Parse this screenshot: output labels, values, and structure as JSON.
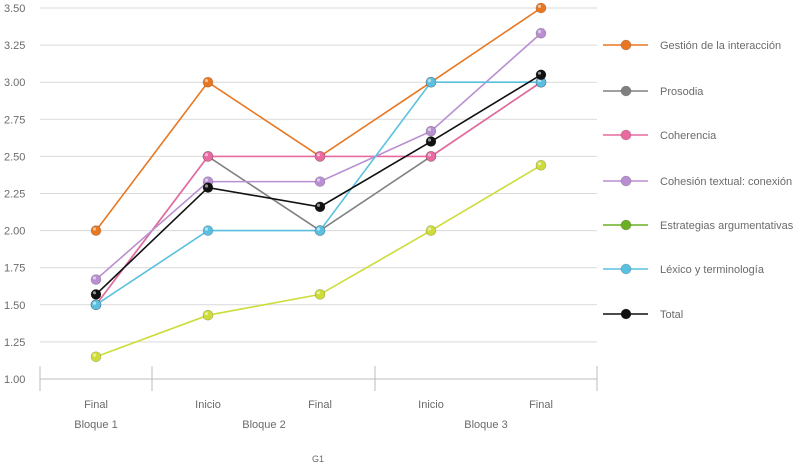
{
  "chart_data": {
    "type": "line",
    "ylim": [
      1.0,
      3.5
    ],
    "yticks": [
      "1.00",
      "1.25",
      "1.50",
      "1.75",
      "2.00",
      "2.25",
      "2.50",
      "2.75",
      "3.00",
      "3.25",
      "3.50"
    ],
    "ytick_values": [
      1.0,
      1.25,
      1.5,
      1.75,
      2.0,
      2.25,
      2.5,
      2.75,
      3.0,
      3.25,
      3.5
    ],
    "grid": true,
    "legend_position": "right",
    "categories": [
      "Final",
      "Inicio",
      "Final",
      "Inicio",
      "Final"
    ],
    "groups": [
      {
        "label": "Bloque 1",
        "start": 0,
        "end": 0
      },
      {
        "label": "Bloque 2",
        "start": 1,
        "end": 2
      },
      {
        "label": "Bloque 3",
        "start": 3,
        "end": 4
      }
    ],
    "footer_label": "G1",
    "series": [
      {
        "name": "Gestión de la interacción",
        "color": "#e87722",
        "values": [
          2.0,
          3.0,
          2.5,
          3.0,
          3.5
        ]
      },
      {
        "name": "Prosodia",
        "color": "#808080",
        "values": [
          1.5,
          2.5,
          2.0,
          2.5,
          3.0
        ]
      },
      {
        "name": "Coherencia",
        "color": "#e86aa0",
        "values": [
          1.5,
          2.5,
          2.5,
          2.5,
          3.0
        ]
      },
      {
        "name": "Cohesión textual: conexión",
        "color": "#b88fd0",
        "values": [
          1.67,
          2.33,
          2.33,
          2.67,
          3.33
        ]
      },
      {
        "name": "Estrategias argumentativas",
        "color": "#cddc39",
        "legend_color": "#6ab023",
        "values": [
          1.15,
          1.43,
          1.57,
          2.0,
          2.44
        ]
      },
      {
        "name": "Léxico y terminología",
        "color": "#5bc0e0",
        "values": [
          1.5,
          2.0,
          2.0,
          3.0,
          3.0
        ]
      },
      {
        "name": "Total",
        "color": "#111111",
        "values": [
          1.57,
          2.29,
          2.16,
          2.6,
          3.05
        ]
      }
    ]
  }
}
